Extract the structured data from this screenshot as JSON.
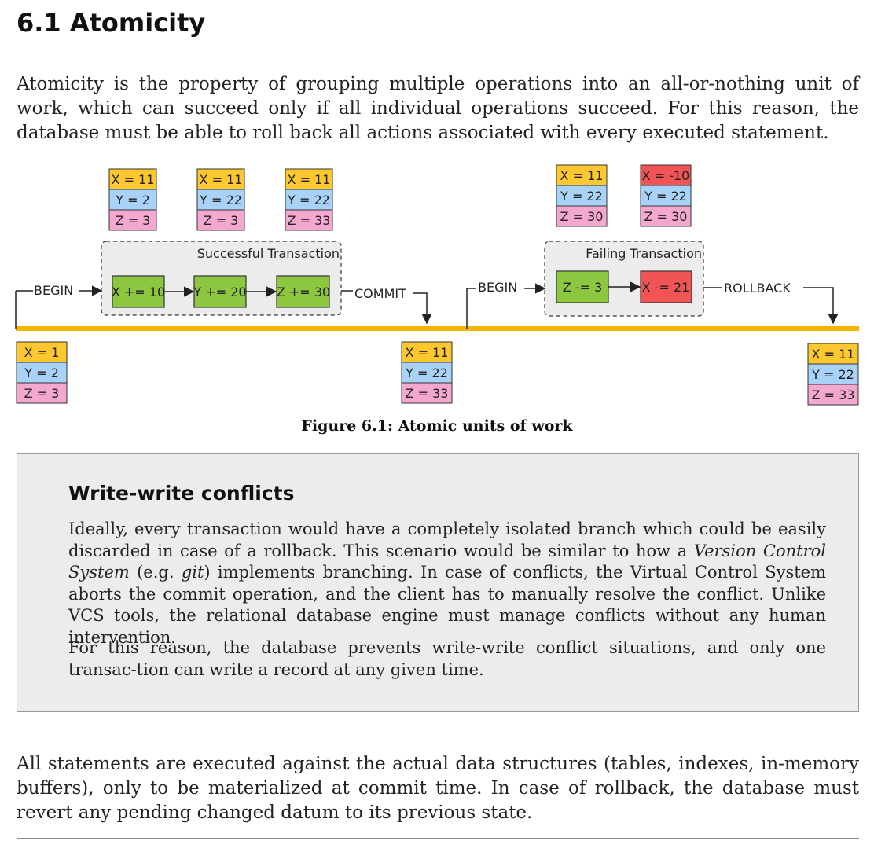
{
  "section": {
    "title": "6.1 Atomicity"
  },
  "intro": "Atomicity is the property of grouping multiple operations into an all-or-nothing unit of work, which can succeed only if all individual operations succeed. For this reason, the database must be able to roll back all actions associated with every executed statement.",
  "figure": {
    "caption": "Figure 6.1: Atomic units of work",
    "colors": {
      "x": "#fdc82f",
      "y": "#a8d2f8",
      "z": "#f5a8cf",
      "fail": "#f05454",
      "op": "#8dc63f",
      "timeline": "#f3b600",
      "group": "#ececec"
    },
    "states": {
      "initial": {
        "x": "X = 1",
        "y": "Y = 2",
        "z": "Z = 3"
      },
      "after_commit": {
        "x": "X = 11",
        "y": "Y = 22",
        "z": "Z = 33"
      },
      "after_rollback": {
        "x": "X = 11",
        "y": "Y = 22",
        "z": "Z = 33"
      }
    },
    "success": {
      "label": "Successful Transaction",
      "begin": "BEGIN",
      "end": "COMMIT",
      "ops": [
        "X += 10",
        "Y += 20",
        "Z += 30"
      ],
      "snapshots": [
        {
          "x": "X = 11",
          "y": "Y = 2",
          "z": "Z = 3"
        },
        {
          "x": "X = 11",
          "y": "Y = 22",
          "z": "Z = 3"
        },
        {
          "x": "X = 11",
          "y": "Y = 22",
          "z": "Z = 33"
        }
      ]
    },
    "failure": {
      "label": "Failing Transaction",
      "begin": "BEGIN",
      "end": "ROLLBACK",
      "ops": [
        "Z -= 3",
        "X -= 21"
      ],
      "snapshots": [
        {
          "x": "X = 11",
          "y": "Y = 22",
          "z": "Z = 30"
        },
        {
          "x": "X = -10",
          "y": "Y = 22",
          "z": "Z = 30"
        }
      ]
    }
  },
  "note": {
    "title": "Write-write conflicts",
    "p1_a": "Ideally, every transaction would have a completely isolated branch which could be easily discarded in case of a rollback. This scenario would be similar to how a ",
    "p1_em1": "Version Control System",
    "p1_b": " (e.g. ",
    "p1_em2": "git",
    "p1_c": ") implements branching. In case of conflicts, the Virtual Control System aborts the commit operation, and the client has to manually resolve the conflict. Unlike VCS tools, the relational database engine must manage conflicts without any human intervention.",
    "p2": "For this reason, the database prevents write-write conflict situations, and only one transac-tion can write a record at any given time."
  },
  "closing": "All statements are executed against the actual data structures (tables, indexes, in-memory buffers), only to be materialized at commit time. In case of rollback, the database must revert any pending changed datum to its previous state."
}
